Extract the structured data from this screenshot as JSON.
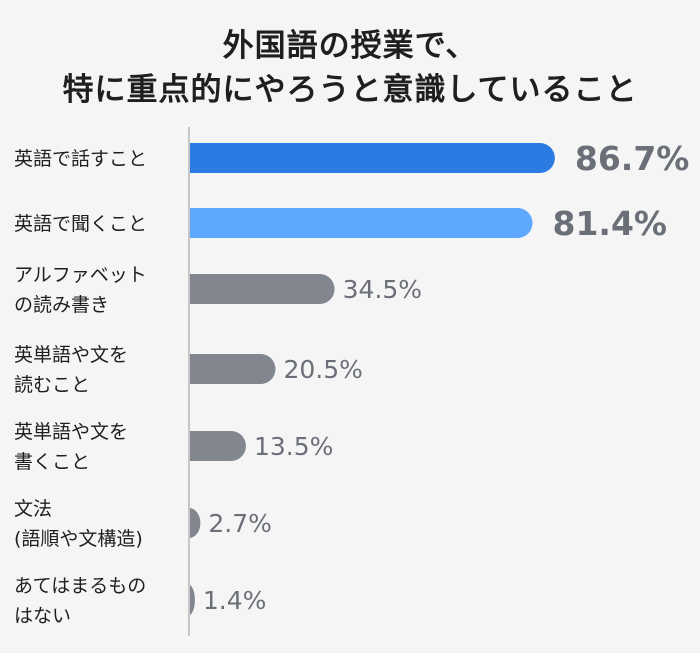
{
  "title_lines": [
    "外国語の授業で、",
    "特に重点的にやろうと意識していること"
  ],
  "colors": {
    "primary": "#2b7be3",
    "secondary": "#5ea9ff",
    "neutral": "#81868f",
    "axis": "#c6c6c6",
    "background": "#f5f5f5"
  },
  "chart_data": {
    "type": "bar",
    "orientation": "horizontal",
    "title": "外国語の授業で、特に重点的にやろうと意識していること",
    "xlabel": "",
    "ylabel": "",
    "unit": "%",
    "xlim": [
      0,
      100
    ],
    "grid": false,
    "categories": [
      [
        "英語で話すこと"
      ],
      [
        "英語で聞くこと"
      ],
      [
        "アルファベット",
        "の読み書き"
      ],
      [
        "英単語や文を",
        "読むこと"
      ],
      [
        "英単語や文を",
        "書くこと"
      ],
      [
        "文法",
        "(語順や文構造)"
      ],
      [
        "あてはまるもの",
        "はない"
      ]
    ],
    "values": [
      86.7,
      81.4,
      34.5,
      20.5,
      13.5,
      2.7,
      1.4
    ],
    "value_labels": [
      "86.7%",
      "81.4%",
      "34.5%",
      "20.5%",
      "13.5%",
      "2.7%",
      "1.4%"
    ],
    "bar_colors": [
      "#2b7be3",
      "#5ea9ff",
      "#81868f",
      "#81868f",
      "#81868f",
      "#81868f",
      "#81868f"
    ],
    "label_colors": [
      "#2b7be3",
      "#5ea9ff",
      "#6b6f78",
      "#6b6f78",
      "#6b6f78",
      "#6b6f78",
      "#6b6f78"
    ],
    "highlighted": [
      true,
      true,
      false,
      false,
      false,
      false,
      false
    ]
  }
}
